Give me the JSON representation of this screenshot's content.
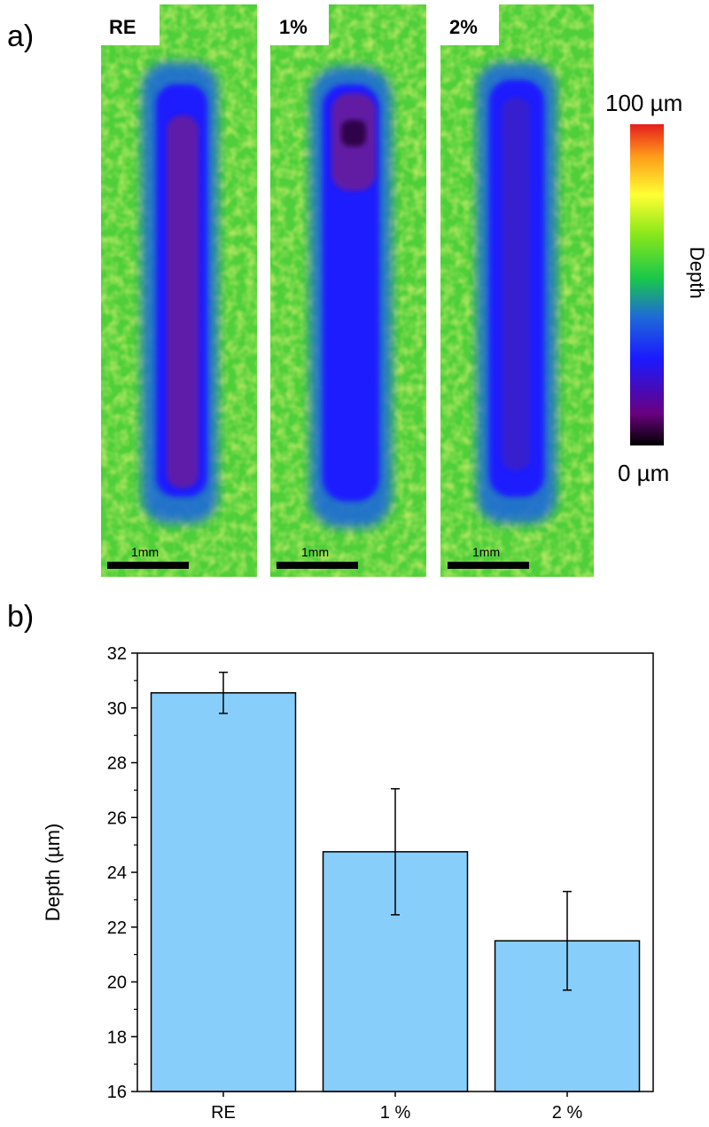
{
  "panel_a": {
    "letter": "a)",
    "scans": [
      {
        "label": "RE",
        "scale_label": "1mm"
      },
      {
        "label": "1%",
        "scale_label": "1mm"
      },
      {
        "label": "2%",
        "scale_label": "1mm"
      }
    ],
    "colorbar": {
      "max_label": "100 µm",
      "min_label": "0 µm",
      "title": "Depth",
      "colors": [
        "#000000",
        "#6a0080",
        "#1a1aff",
        "#1e6ad8",
        "#19c84a",
        "#8be81a",
        "#ffff33",
        "#ff9b1a",
        "#e51e1e"
      ]
    }
  },
  "panel_b": {
    "letter": "b)"
  },
  "chart_data": {
    "type": "bar",
    "categories": [
      "RE",
      "1 %",
      "2 %"
    ],
    "values": [
      30.55,
      24.75,
      21.5
    ],
    "error": [
      0.75,
      2.3,
      1.8
    ],
    "xlabel": "",
    "ylabel": "Depth (µm)",
    "ylim": [
      16,
      32
    ],
    "yticks": [
      16,
      18,
      20,
      22,
      24,
      26,
      28,
      30,
      32
    ],
    "bar_color": "#87cefa",
    "grid": false
  }
}
